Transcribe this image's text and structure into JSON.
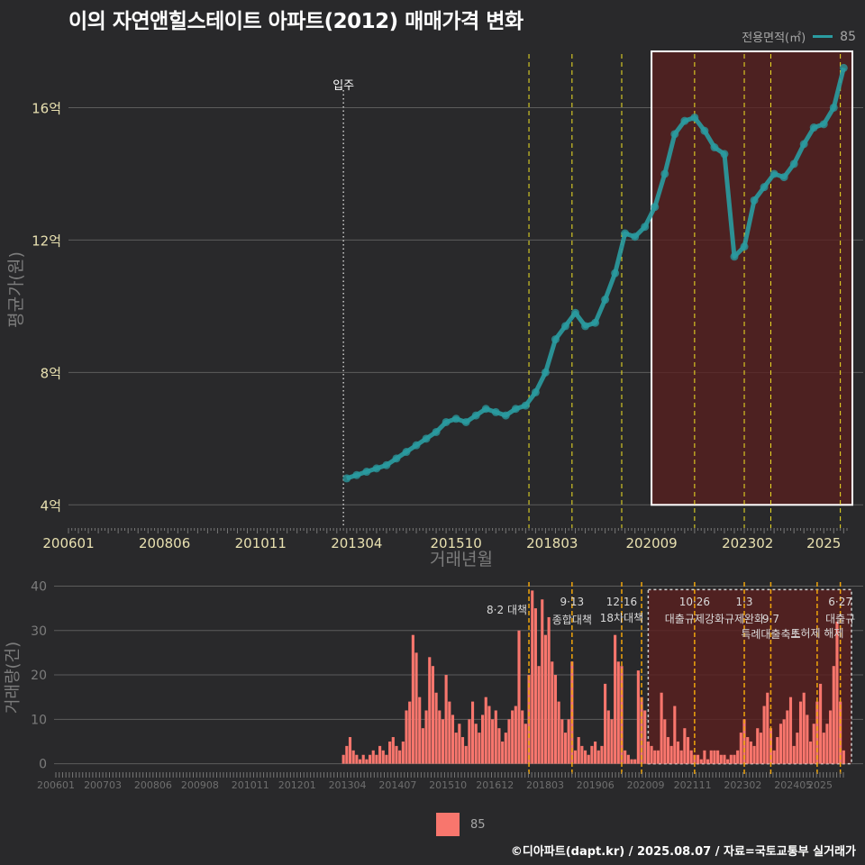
{
  "title": "이의 자연앤힐스테이트 아파트(2012) 매매가격 변화",
  "footer": "©디아파트(dapt.kr) / 2025.08.07 / 자료=국토교통부 실거래가",
  "legend": {
    "title": "전용면적(㎡)",
    "value": "85"
  },
  "colors": {
    "background": "#29292b",
    "price_series": "#2a9ca1",
    "volume_bars": "#f8766d",
    "policy_line_price": "#f2e324",
    "policy_line_volume": "#f0a50c",
    "highlight_fill": "#5a1f1f",
    "highlight_border": "#ffffff",
    "grid": "#5c5c5c"
  },
  "chart_data": [
    {
      "type": "scatter",
      "ylabel": "평균가(원)",
      "xlabel": "거래년월",
      "x_ticks": [
        "200601",
        "200806",
        "201011",
        "201304",
        "201510",
        "201803",
        "202009",
        "202302",
        "2025"
      ],
      "y_ticks": [
        "4억",
        "8억",
        "12억",
        "16억"
      ],
      "ylim": [
        3.3,
        18
      ],
      "grid": true,
      "series": [
        {
          "name": "85",
          "points": [
            [
              "2013-01",
              4.8
            ],
            [
              "2013-04",
              4.9
            ],
            [
              "2013-07",
              5.0
            ],
            [
              "2013-10",
              5.1
            ],
            [
              "2014-01",
              5.2
            ],
            [
              "2014-04",
              5.4
            ],
            [
              "2014-07",
              5.6
            ],
            [
              "2014-10",
              5.8
            ],
            [
              "2015-01",
              6.0
            ],
            [
              "2015-04",
              6.2
            ],
            [
              "2015-07",
              6.5
            ],
            [
              "2015-10",
              6.6
            ],
            [
              "2016-01",
              6.5
            ],
            [
              "2016-04",
              6.7
            ],
            [
              "2016-07",
              6.9
            ],
            [
              "2016-10",
              6.8
            ],
            [
              "2017-01",
              6.7
            ],
            [
              "2017-04",
              6.9
            ],
            [
              "2017-07",
              7.0
            ],
            [
              "2017-10",
              7.4
            ],
            [
              "2018-01",
              8.0
            ],
            [
              "2018-04",
              9.0
            ],
            [
              "2018-07",
              9.4
            ],
            [
              "2018-10",
              9.8
            ],
            [
              "2019-01",
              9.4
            ],
            [
              "2019-04",
              9.5
            ],
            [
              "2019-07",
              10.2
            ],
            [
              "2019-10",
              11.0
            ],
            [
              "2020-01",
              12.2
            ],
            [
              "2020-04",
              12.1
            ],
            [
              "2020-07",
              12.4
            ],
            [
              "2020-10",
              13.0
            ],
            [
              "2021-01",
              14.0
            ],
            [
              "2021-04",
              15.2
            ],
            [
              "2021-07",
              15.6
            ],
            [
              "2021-10",
              15.7
            ],
            [
              "2022-01",
              15.3
            ],
            [
              "2022-04",
              14.8
            ],
            [
              "2022-07",
              14.6
            ],
            [
              "2022-10",
              11.5
            ],
            [
              "2023-01",
              11.8
            ],
            [
              "2023-04",
              13.2
            ],
            [
              "2023-07",
              13.6
            ],
            [
              "2023-10",
              14.0
            ],
            [
              "2024-01",
              13.9
            ],
            [
              "2024-04",
              14.3
            ],
            [
              "2024-07",
              14.9
            ],
            [
              "2024-10",
              15.4
            ],
            [
              "2025-01",
              15.5
            ],
            [
              "2025-04",
              16.0
            ],
            [
              "2025-07",
              17.2
            ]
          ]
        }
      ],
      "annotations": [
        {
          "x": "2012-12",
          "text": "입주"
        }
      ],
      "policy_lines": [
        "2017-08",
        "2018-09",
        "2019-12",
        "2021-10",
        "2023-01",
        "2023-09",
        "2025-06"
      ],
      "highlight": {
        "from": "2020-09",
        "to": "2025-08",
        "ymin": 4.0,
        "ymax": 17.7
      }
    },
    {
      "type": "bar",
      "ylabel": "거래량(건)",
      "x_ticks": [
        "200601",
        "200703",
        "200806",
        "200908",
        "201011",
        "201201",
        "201304",
        "201407",
        "201510",
        "201612",
        "201803",
        "201906",
        "202009",
        "202111",
        "202302",
        "202405",
        "2025"
      ],
      "y_ticks": [
        "0",
        "10",
        "20",
        "30",
        "40"
      ],
      "ylim": [
        -1.5,
        40.5
      ],
      "grid": true,
      "series": [
        {
          "name": "85",
          "values": [
            [
              "2012-12",
              2
            ],
            [
              "2013-01",
              4
            ],
            [
              "2013-02",
              6
            ],
            [
              "2013-03",
              3
            ],
            [
              "2013-04",
              2
            ],
            [
              "2013-05",
              1
            ],
            [
              "2013-06",
              2
            ],
            [
              "2013-07",
              1
            ],
            [
              "2013-08",
              2
            ],
            [
              "2013-09",
              3
            ],
            [
              "2013-10",
              2
            ],
            [
              "2013-11",
              4
            ],
            [
              "2013-12",
              3
            ],
            [
              "2014-01",
              2
            ],
            [
              "2014-02",
              5
            ],
            [
              "2014-03",
              6
            ],
            [
              "2014-04",
              4
            ],
            [
              "2014-05",
              3
            ],
            [
              "2014-06",
              5
            ],
            [
              "2014-07",
              12
            ],
            [
              "2014-08",
              14
            ],
            [
              "2014-09",
              29
            ],
            [
              "2014-10",
              25
            ],
            [
              "2014-11",
              15
            ],
            [
              "2014-12",
              8
            ],
            [
              "2015-01",
              12
            ],
            [
              "2015-02",
              24
            ],
            [
              "2015-03",
              22
            ],
            [
              "2015-04",
              16
            ],
            [
              "2015-05",
              12
            ],
            [
              "2015-06",
              10
            ],
            [
              "2015-07",
              20
            ],
            [
              "2015-08",
              14
            ],
            [
              "2015-09",
              11
            ],
            [
              "2015-10",
              7
            ],
            [
              "2015-11",
              9
            ],
            [
              "2015-12",
              6
            ],
            [
              "2016-01",
              4
            ],
            [
              "2016-02",
              10
            ],
            [
              "2016-03",
              14
            ],
            [
              "2016-04",
              9
            ],
            [
              "2016-05",
              7
            ],
            [
              "2016-06",
              11
            ],
            [
              "2016-07",
              15
            ],
            [
              "2016-08",
              13
            ],
            [
              "2016-09",
              10
            ],
            [
              "2016-10",
              12
            ],
            [
              "2016-11",
              8
            ],
            [
              "2016-12",
              5
            ],
            [
              "2017-01",
              7
            ],
            [
              "2017-02",
              10
            ],
            [
              "2017-03",
              12
            ],
            [
              "2017-04",
              13
            ],
            [
              "2017-05",
              30
            ],
            [
              "2017-06",
              12
            ],
            [
              "2017-07",
              9
            ],
            [
              "2017-08",
              20
            ],
            [
              "2017-09",
              39
            ],
            [
              "2017-10",
              35
            ],
            [
              "2017-11",
              22
            ],
            [
              "2017-12",
              37
            ],
            [
              "2018-01",
              29
            ],
            [
              "2018-02",
              33
            ],
            [
              "2018-03",
              23
            ],
            [
              "2018-04",
              20
            ],
            [
              "2018-05",
              14
            ],
            [
              "2018-06",
              10
            ],
            [
              "2018-07",
              7
            ],
            [
              "2018-08",
              10
            ],
            [
              "2018-09",
              23
            ],
            [
              "2018-10",
              3
            ],
            [
              "2018-11",
              6
            ],
            [
              "2018-12",
              4
            ],
            [
              "2019-01",
              3
            ],
            [
              "2019-02",
              2
            ],
            [
              "2019-03",
              4
            ],
            [
              "2019-04",
              5
            ],
            [
              "2019-05",
              3
            ],
            [
              "2019-06",
              4
            ],
            [
              "2019-07",
              18
            ],
            [
              "2019-08",
              12
            ],
            [
              "2019-09",
              10
            ],
            [
              "2019-10",
              29
            ],
            [
              "2019-11",
              23
            ],
            [
              "2019-12",
              22
            ],
            [
              "2020-01",
              3
            ],
            [
              "2020-02",
              2
            ],
            [
              "2020-03",
              1
            ],
            [
              "2020-04",
              1
            ],
            [
              "2020-05",
              21
            ],
            [
              "2020-06",
              15
            ],
            [
              "2020-07",
              12
            ],
            [
              "2020-08",
              5
            ],
            [
              "2020-09",
              4
            ],
            [
              "2020-10",
              3
            ],
            [
              "2020-11",
              3
            ],
            [
              "2020-12",
              16
            ],
            [
              "2021-01",
              10
            ],
            [
              "2021-02",
              6
            ],
            [
              "2021-03",
              4
            ],
            [
              "2021-04",
              13
            ],
            [
              "2021-05",
              5
            ],
            [
              "2021-06",
              3
            ],
            [
              "2021-07",
              8
            ],
            [
              "2021-08",
              6
            ],
            [
              "2021-09",
              3
            ],
            [
              "2021-10",
              2
            ],
            [
              "2021-11",
              2
            ],
            [
              "2021-12",
              1
            ],
            [
              "2022-01",
              3
            ],
            [
              "2022-02",
              1
            ],
            [
              "2022-03",
              3
            ],
            [
              "2022-04",
              3
            ],
            [
              "2022-05",
              3
            ],
            [
              "2022-06",
              2
            ],
            [
              "2022-07",
              2
            ],
            [
              "2022-08",
              1
            ],
            [
              "2022-09",
              2
            ],
            [
              "2022-10",
              2
            ],
            [
              "2022-11",
              3
            ],
            [
              "2022-12",
              7
            ],
            [
              "2023-01",
              10
            ],
            [
              "2023-02",
              6
            ],
            [
              "2023-03",
              5
            ],
            [
              "2023-04",
              4
            ],
            [
              "2023-05",
              8
            ],
            [
              "2023-06",
              7
            ],
            [
              "2023-07",
              13
            ],
            [
              "2023-08",
              16
            ],
            [
              "2023-09",
              8
            ],
            [
              "2023-10",
              3
            ],
            [
              "2023-11",
              6
            ],
            [
              "2023-12",
              9
            ],
            [
              "2024-01",
              10
            ],
            [
              "2024-02",
              12
            ],
            [
              "2024-03",
              15
            ],
            [
              "2024-04",
              4
            ],
            [
              "2024-05",
              7
            ],
            [
              "2024-06",
              14
            ],
            [
              "2024-07",
              16
            ],
            [
              "2024-08",
              11
            ],
            [
              "2024-09",
              5
            ],
            [
              "2024-10",
              9
            ],
            [
              "2024-11",
              14
            ],
            [
              "2024-12",
              18
            ],
            [
              "2025-01",
              7
            ],
            [
              "2025-02",
              9
            ],
            [
              "2025-03",
              12
            ],
            [
              "2025-04",
              22
            ],
            [
              "2025-05",
              32
            ],
            [
              "2025-06",
              14
            ],
            [
              "2025-07",
              3
            ]
          ]
        }
      ],
      "policy_lines": [
        {
          "x": "2017-08",
          "date": "8·2",
          "label": "대책"
        },
        {
          "x": "2018-09",
          "date": "9·13",
          "label": "종합대책"
        },
        {
          "x": "2019-12",
          "date": "12·16",
          "label": "18차대책"
        },
        {
          "x": "2020-06",
          "date": "",
          "label": ""
        },
        {
          "x": "2021-10",
          "date": "10·26",
          "label": "대출규제강화"
        },
        {
          "x": "2023-01",
          "date": "1·3",
          "label": "규제완화"
        },
        {
          "x": "2023-09",
          "date": "9·7",
          "label": "특례대출축소"
        },
        {
          "x": "2024-11",
          "date": "",
          "label": "토허제 해제"
        },
        {
          "x": "2025-06",
          "date": "6·27",
          "label": "대출규"
        }
      ],
      "highlight": {
        "from": "2020-08",
        "to": "2025-08"
      }
    }
  ]
}
